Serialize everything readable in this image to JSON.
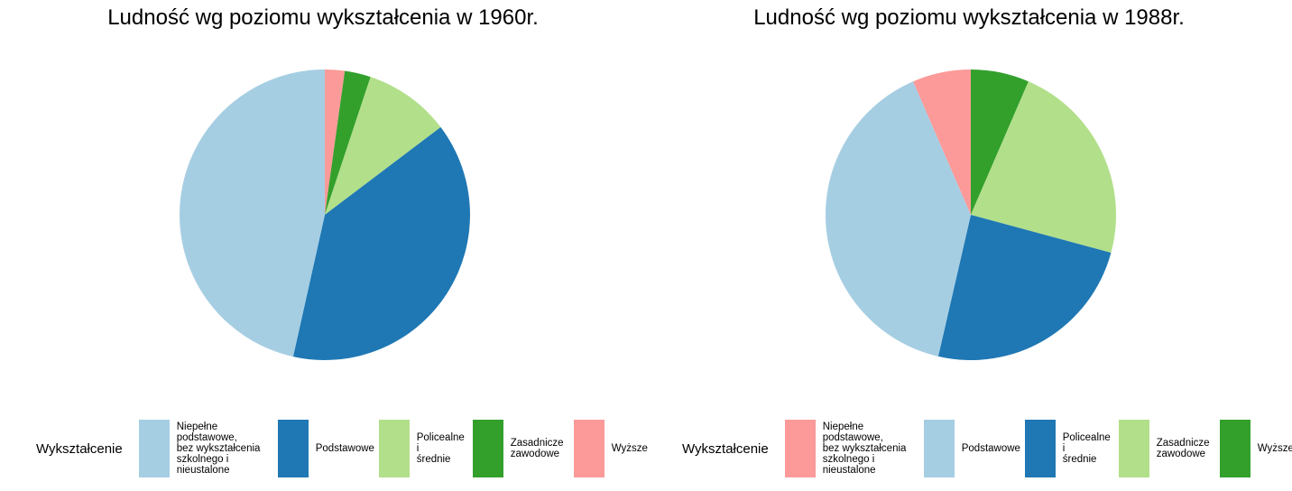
{
  "legend_title": "Wykształcenie",
  "chart_data": [
    {
      "type": "pie",
      "title": "Ludność wg poziomu wykształcenia w 1960r.",
      "legend_title": "Wykształcenie",
      "legend_position": "bottom",
      "slices": [
        {
          "label": "Wyższe",
          "value": 2.2,
          "color": "#FB9A99"
        },
        {
          "label": "Zasadnicze zawodowe",
          "value": 2.9,
          "color": "#33A02C"
        },
        {
          "label": "Policealne i średnie",
          "value": 9.6,
          "color": "#B2DF8A"
        },
        {
          "label": "Podstawowe",
          "value": 38.8,
          "color": "#1F78B4"
        },
        {
          "label": "Niepełne podstawowe, bez wykształcenia szkolnego i nieustalone",
          "value": 46.5,
          "color": "#A6CEE3"
        }
      ],
      "legend": [
        {
          "label": "Niepełne podstawowe, bez wykształcenia szkolnego i nieustalone",
          "color": "#A6CEE3"
        },
        {
          "label": "Podstawowe",
          "color": "#1F78B4"
        },
        {
          "label": "Policealne i średnie",
          "color": "#B2DF8A"
        },
        {
          "label": "Zasadnicze zawodowe",
          "color": "#33A02C"
        },
        {
          "label": "Wyższe",
          "color": "#FB9A99"
        }
      ]
    },
    {
      "type": "pie",
      "title": "Ludność wg poziomu wykształcenia w 1988r.",
      "legend_title": "Wykształcenie",
      "legend_position": "bottom",
      "slices": [
        {
          "label": "Wyższe",
          "value": 6.5,
          "color": "#33A02C"
        },
        {
          "label": "Zasadnicze zawodowe",
          "value": 22.7,
          "color": "#B2DF8A"
        },
        {
          "label": "Policealne i średnie",
          "value": 24.4,
          "color": "#1F78B4"
        },
        {
          "label": "Podstawowe",
          "value": 39.9,
          "color": "#A6CEE3"
        },
        {
          "label": "Niepełne podstawowe, bez wykształcenia szkolnego i nieustalone",
          "value": 6.5,
          "color": "#FB9A99"
        }
      ],
      "legend": [
        {
          "label": "Niepełne podstawowe, bez wykształcenia szkolnego i nieustalone",
          "color": "#FB9A99"
        },
        {
          "label": "Podstawowe",
          "color": "#A6CEE3"
        },
        {
          "label": "Policealne i średnie",
          "color": "#1F78B4"
        },
        {
          "label": "Zasadnicze zawodowe",
          "color": "#B2DF8A"
        },
        {
          "label": "Wyższe",
          "color": "#33A02C"
        }
      ]
    }
  ],
  "legend_lines": {
    "niepelne": [
      "Niepełne",
      "podstawowe,",
      "bez wykształcenia",
      "szkolnego i",
      "nieustalone"
    ],
    "podstawowe": [
      "Podstawowe"
    ],
    "policealne": [
      "Policealne",
      "i",
      "średnie"
    ],
    "zasadnicze": [
      "Zasadnicze",
      "zawodowe"
    ],
    "wyzsze": [
      "Wyższe"
    ]
  }
}
